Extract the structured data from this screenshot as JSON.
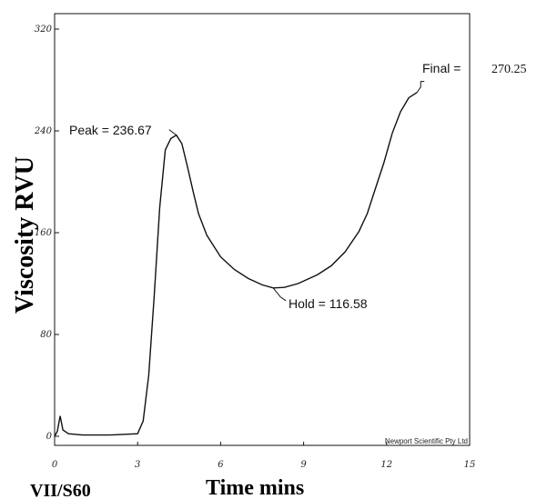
{
  "chart_data": {
    "type": "line",
    "xlabel": "Time mins",
    "ylabel": "Viscosity RVU",
    "xlim": [
      0,
      15
    ],
    "ylim": [
      0,
      320
    ],
    "x_ticks": [
      "0",
      "3",
      "6",
      "9",
      "12",
      "15"
    ],
    "y_ticks": [
      "0",
      "80",
      "160",
      "240",
      "320"
    ],
    "grid": false,
    "series": [
      {
        "x": [
          0.0,
          0.1,
          0.2,
          0.3,
          0.5,
          1,
          2,
          3,
          3.2,
          3.4,
          3.6,
          3.8,
          4.0,
          4.2,
          4.4,
          4.6,
          4.8,
          5.0,
          5.2,
          5.5,
          6.0,
          6.5,
          7.0,
          7.5,
          7.9,
          8.3,
          8.8,
          9.5,
          10.0,
          10.5,
          11.0,
          11.3,
          11.6,
          11.9,
          12.2,
          12.5,
          12.8,
          13.1
        ],
        "y": [
          0,
          4,
          16,
          5,
          2,
          1,
          1,
          2,
          12,
          48,
          110,
          180,
          225,
          234,
          236.67,
          230,
          212,
          193,
          175,
          158,
          141,
          131,
          124,
          119,
          116.58,
          117,
          120,
          127,
          134,
          145,
          161,
          175,
          195,
          215,
          238,
          255,
          266,
          270.25
        ]
      }
    ],
    "annotations": {
      "peak": "Peak = 236.67",
      "hold": "Hold = 116.58",
      "final_label": "Final =",
      "final_value": "270.25"
    }
  },
  "figure_text": {
    "sample_id": "VII/S60",
    "credit": "Newport Scientific Pty Ltd"
  }
}
